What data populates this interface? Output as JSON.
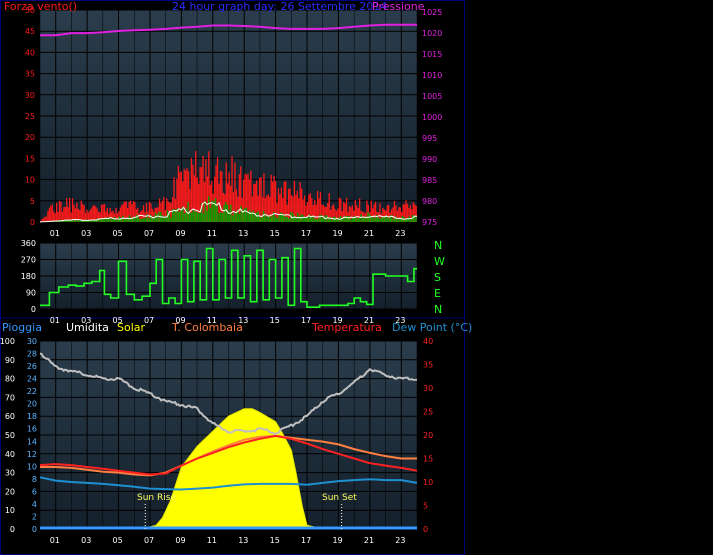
{
  "colors": {
    "bg": "#000000",
    "frame": "#00007a",
    "plot_top": "#2b3d4c",
    "plot_bottom": "#14202b",
    "grid": "#000000",
    "wind": "#ff1a1a",
    "gust_fill": "#00a000",
    "gust_line": "#ffffff",
    "pressure": "#e020e0",
    "direction": "#22ff22",
    "rain": "#3399ff",
    "humidity": "#c0c0c0",
    "solar": "#ffff00",
    "temp_colombaia": "#ff8040",
    "temperature": "#ff2020",
    "dew_point": "#1e8fd0",
    "title": "#2b2bff"
  },
  "header": {
    "wind_label": "Forza vento()",
    "title": "24 hour graph day:  26 Settembre 2014",
    "pressure_label": "Pressione"
  },
  "legend": {
    "rain": "Pioggia",
    "humidity": "Umidita",
    "solar": "Solar",
    "colombaia": "T. Colombaia",
    "temperature": "Temperatura",
    "dew_point": "Dew Point (°C)"
  },
  "annotations": {
    "sun_rise": "Sun Rise",
    "sun_set": "Sun Set"
  },
  "compass": [
    "N",
    "W",
    "S",
    "E",
    "N"
  ],
  "chart_data": [
    {
      "type": "line",
      "x_ticks": [
        "01",
        "03",
        "05",
        "07",
        "09",
        "11",
        "13",
        "15",
        "17",
        "19",
        "21",
        "23"
      ],
      "y_ticks": [
        0,
        5,
        10,
        15,
        20,
        25,
        30,
        35,
        40,
        45,
        50
      ],
      "ylim": [
        0,
        50
      ],
      "y2_ticks": [
        975,
        980,
        985,
        990,
        995,
        1000,
        1005,
        1010,
        1015,
        1020,
        1025
      ],
      "y2lim": [
        975,
        1025.5
      ],
      "grid": true,
      "series": [
        {
          "name": "Forza vento()",
          "axis": "left",
          "x": [
            0,
            1,
            2,
            3,
            4,
            5,
            6,
            7,
            8,
            9,
            10,
            11,
            12,
            13,
            14,
            15,
            16,
            17,
            18,
            19,
            20,
            21,
            22,
            23,
            24
          ],
          "values": [
            0.2,
            4,
            4,
            3.5,
            3.5,
            3.5,
            3.5,
            3.5,
            5,
            12,
            15,
            12,
            11,
            10,
            9,
            8,
            7,
            6,
            5,
            4.5,
            4,
            3.5,
            3.5,
            3.5,
            4
          ]
        },
        {
          "name": "gust",
          "axis": "left",
          "x": [
            0,
            1,
            2,
            3,
            4,
            5,
            6,
            7,
            8,
            9,
            10,
            11,
            12,
            13,
            14,
            15,
            16,
            17,
            18,
            19,
            20,
            21,
            22,
            23,
            24
          ],
          "values": [
            0,
            0.3,
            0.5,
            0.5,
            0.8,
            1,
            1.2,
            1.5,
            1.8,
            2.8,
            3.8,
            4.2,
            3.2,
            2.4,
            2,
            1.8,
            1.6,
            1.3,
            1.2,
            1,
            1,
            1.8,
            1.2,
            1,
            1.2
          ]
        },
        {
          "name": "Pressione",
          "axis": "right",
          "x": [
            0,
            1,
            2,
            3,
            4,
            5,
            6,
            7,
            8,
            9,
            10,
            11,
            12,
            13,
            14,
            15,
            16,
            17,
            18,
            19,
            20,
            21,
            22,
            23,
            24
          ],
          "values": [
            1019.5,
            1019.5,
            1020,
            1020,
            1020.2,
            1020.5,
            1020.7,
            1020.8,
            1021,
            1021.3,
            1021.5,
            1021.8,
            1021.8,
            1021.7,
            1021.5,
            1021.2,
            1021,
            1021,
            1021,
            1021.2,
            1021.5,
            1021.8,
            1022,
            1022,
            1022
          ]
        }
      ]
    },
    {
      "type": "line",
      "x_ticks": [
        "01",
        "03",
        "05",
        "07",
        "09",
        "11",
        "13",
        "15",
        "17",
        "19",
        "21",
        "23"
      ],
      "y_ticks": [
        0,
        90,
        180,
        270,
        360
      ],
      "ylim": [
        0,
        360
      ],
      "grid": true,
      "series": [
        {
          "name": "direction",
          "x": [
            0,
            0.6,
            1.2,
            1.8,
            2.3,
            2.8,
            3.3,
            3.8,
            4.1,
            4.5,
            5,
            5.5,
            6,
            6.5,
            7,
            7.4,
            7.8,
            8.2,
            8.6,
            9,
            9.4,
            9.8,
            10.2,
            10.6,
            11,
            11.4,
            11.8,
            12.2,
            12.6,
            13,
            13.4,
            13.8,
            14.2,
            14.6,
            15,
            15.4,
            15.8,
            16.2,
            16.6,
            17,
            17.4,
            17.8,
            18.3,
            18.8,
            19.2,
            19.6,
            20,
            20.4,
            20.8,
            21.2,
            22,
            23,
            23.4,
            23.8,
            24
          ],
          "values": [
            20,
            90,
            120,
            130,
            125,
            140,
            150,
            210,
            80,
            60,
            260,
            80,
            50,
            70,
            140,
            270,
            30,
            60,
            30,
            270,
            40,
            260,
            50,
            330,
            50,
            270,
            60,
            320,
            60,
            290,
            40,
            320,
            50,
            270,
            60,
            280,
            20,
            330,
            40,
            10,
            10,
            20,
            20,
            20,
            20,
            30,
            60,
            40,
            25,
            190,
            180,
            180,
            150,
            220,
            220
          ]
        }
      ]
    },
    {
      "type": "line",
      "x_ticks": [
        "01",
        "03",
        "05",
        "07",
        "09",
        "11",
        "13",
        "15",
        "17",
        "19",
        "21",
        "23"
      ],
      "y_ticks": [
        0,
        10,
        20,
        30,
        40,
        50,
        60,
        70,
        80,
        90,
        100
      ],
      "ylim": [
        0,
        100
      ],
      "y_inner_ticks": [
        0,
        2,
        4,
        6,
        8,
        10,
        12,
        14,
        16,
        18,
        20,
        22,
        24,
        26,
        28,
        30
      ],
      "y_inner_lim": [
        0,
        30
      ],
      "y2_ticks": [
        0,
        5,
        10,
        15,
        20,
        25,
        30,
        35,
        40
      ],
      "y2lim": [
        0,
        40
      ],
      "grid": true,
      "series": [
        {
          "name": "Pioggia",
          "axis": "left",
          "x": [
            0,
            24
          ],
          "values": [
            0,
            0
          ]
        },
        {
          "name": "Umidita",
          "axis": "left",
          "x": [
            0,
            0.5,
            1,
            2,
            3,
            4,
            5,
            6,
            7,
            8,
            9,
            10,
            11,
            12,
            13,
            14,
            15,
            16,
            17,
            18,
            19,
            20,
            21,
            22,
            23,
            24
          ],
          "values": [
            94,
            90,
            86,
            84,
            82,
            80,
            80,
            75,
            72,
            68,
            66,
            64,
            56,
            52,
            52,
            53,
            51,
            55,
            60,
            68,
            72,
            78,
            85,
            82,
            80,
            80
          ]
        },
        {
          "name": "Solar",
          "axis": "left",
          "x": [
            0,
            6.5,
            7.4,
            7.8,
            8.3,
            9,
            10,
            11,
            12,
            13,
            13.5,
            14,
            15,
            15.5,
            16,
            16.3,
            16.7,
            17,
            18,
            24
          ],
          "values": [
            0,
            0,
            2,
            6,
            15,
            33,
            44,
            52,
            60,
            64,
            64,
            62,
            57,
            50,
            42,
            30,
            12,
            2,
            0,
            0
          ]
        },
        {
          "name": "T. Colombaia",
          "axis": "right",
          "x": [
            0,
            1,
            2,
            3,
            4,
            5,
            6,
            7,
            8,
            9,
            10,
            11,
            12,
            13,
            14,
            15,
            16,
            17,
            18,
            19,
            20,
            21,
            22,
            23,
            24
          ],
          "values": [
            13.2,
            13.2,
            13,
            12.6,
            12.2,
            12,
            11.6,
            11.4,
            12,
            13.5,
            15,
            16.5,
            17.8,
            19,
            19.6,
            19.8,
            19.4,
            19,
            18.6,
            18,
            17,
            16.2,
            15.5,
            15,
            15
          ]
        },
        {
          "name": "Temperatura",
          "axis": "right",
          "x": [
            0,
            1,
            2,
            3,
            4,
            5,
            6,
            7,
            8,
            9,
            10,
            11,
            12,
            13,
            14,
            15,
            16,
            17,
            18,
            19,
            20,
            21,
            22,
            23,
            24
          ],
          "values": [
            13.6,
            13.8,
            13.6,
            13.2,
            12.8,
            12.4,
            12,
            11.6,
            11.8,
            13.5,
            15,
            16.2,
            17.4,
            18.4,
            19.2,
            19.8,
            19.2,
            18.2,
            17,
            16,
            15,
            14,
            13.5,
            13,
            12.4
          ]
        },
        {
          "name": "Dew Point (°C)",
          "axis": "right",
          "x": [
            0,
            1,
            2,
            3,
            4,
            5,
            6,
            7,
            8,
            9,
            10,
            11,
            12,
            13,
            14,
            15,
            16,
            17,
            18,
            19,
            20,
            21,
            22,
            23,
            24
          ],
          "values": [
            11,
            10.3,
            10,
            9.8,
            9.6,
            9.3,
            9,
            8.6,
            8.5,
            8.4,
            8.6,
            8.8,
            9.2,
            9.5,
            9.6,
            9.6,
            9.6,
            9.4,
            9.8,
            10.2,
            10.4,
            10.6,
            10.4,
            10.4,
            9.8
          ]
        }
      ],
      "markers": [
        {
          "label": "Sun Rise",
          "x": 6.7
        },
        {
          "label": "Sun Set",
          "x": 19.2
        }
      ]
    }
  ]
}
